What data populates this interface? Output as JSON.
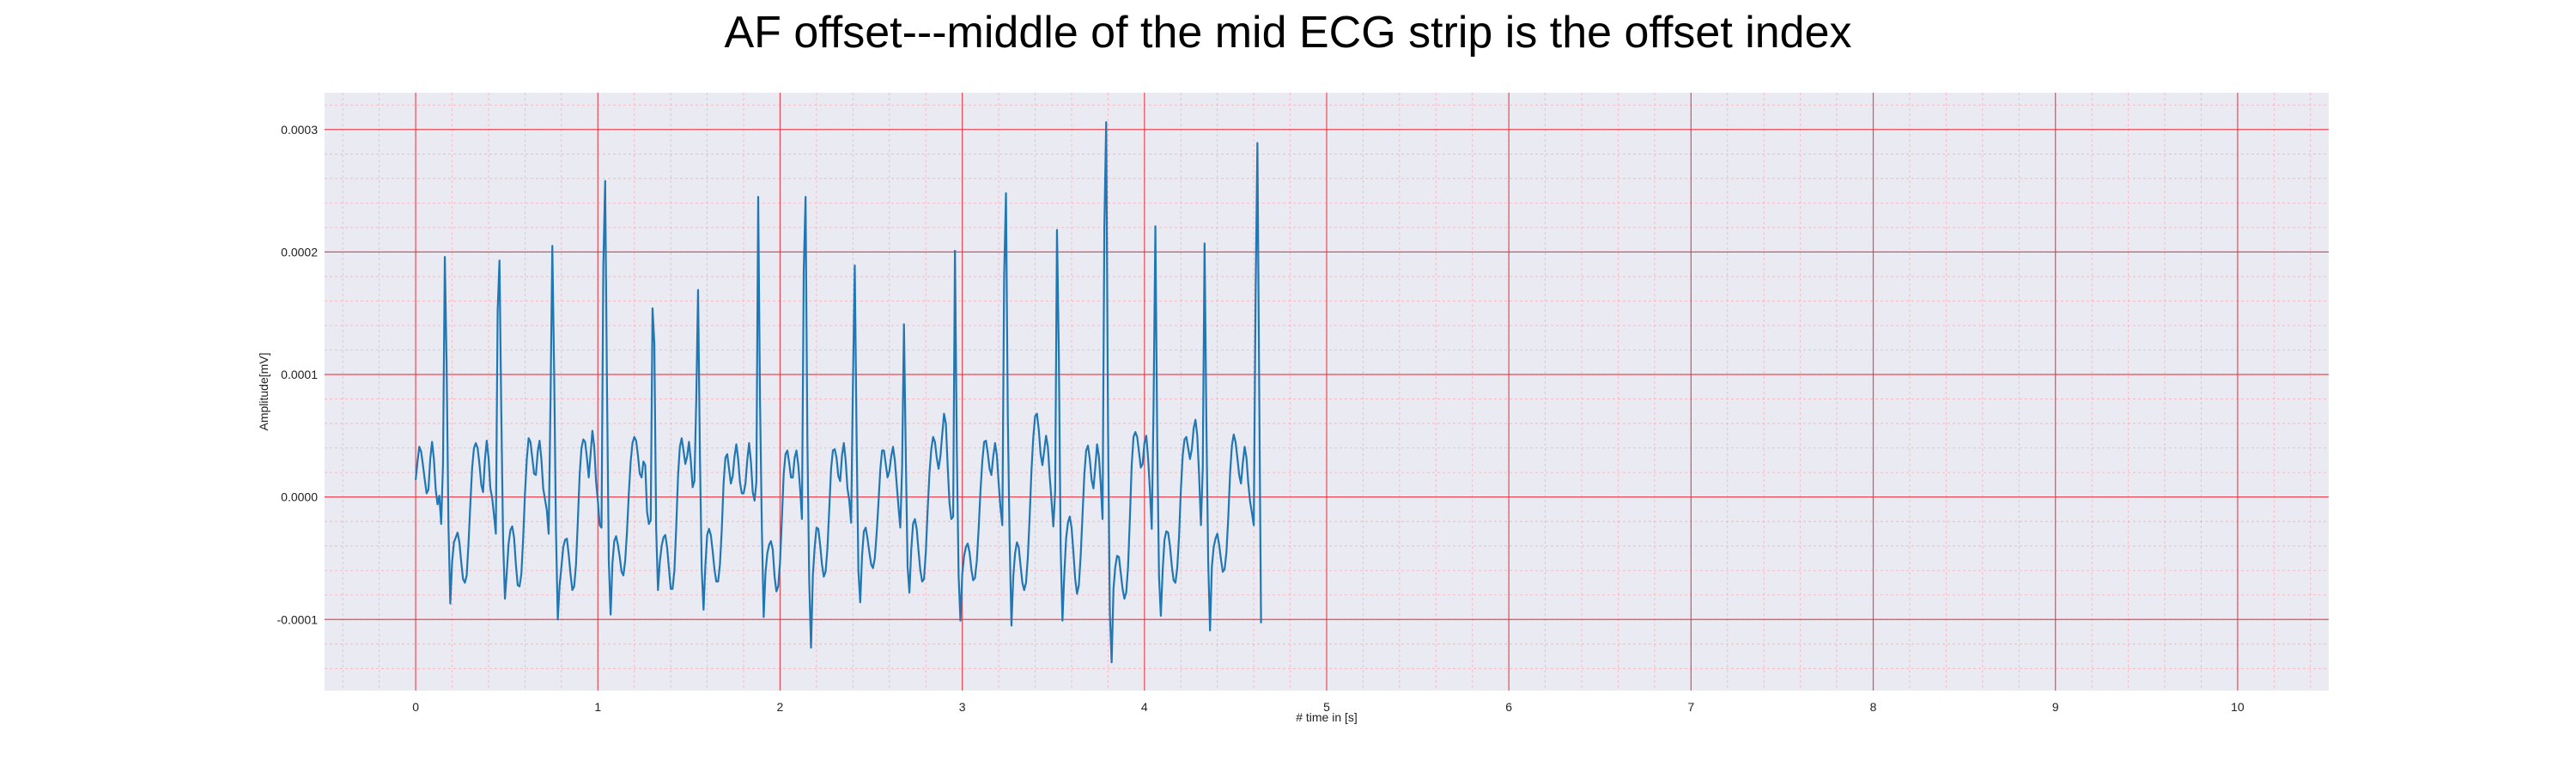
{
  "chart_data": {
    "type": "line",
    "title": "AF offset---middle of the mid ECG strip is the offset index",
    "xlabel": "# time in [s]",
    "ylabel": "Amplitude[mV]",
    "xlim": [
      -0.5,
      10.5
    ],
    "ylim": [
      -0.000158,
      0.00033
    ],
    "xticks": [
      0,
      1,
      2,
      3,
      4,
      5,
      6,
      7,
      8,
      9,
      10
    ],
    "xtick_labels": [
      "0",
      "1",
      "2",
      "3",
      "4",
      "5",
      "6",
      "7",
      "8",
      "9",
      "10"
    ],
    "yticks": [
      -0.0001,
      0.0,
      0.0001,
      0.0002,
      0.0003
    ],
    "ytick_labels": [
      "-0.0001",
      "0.0000",
      "0.0001",
      "0.0002",
      "0.0003"
    ],
    "grid": "major and minor",
    "sample_rate_hz": 100,
    "series": [
      {
        "color": "#1f77b4",
        "x_start": 0,
        "x_step": 0.01,
        "values": [
          1.4e-05,
          2.9e-05,
          4.1e-05,
          3.7e-05,
          2.6e-05,
          1.4e-05,
          3e-06,
          6e-06,
          3.1e-05,
          4.5e-05,
          3.1e-05,
          6e-06,
          -6e-06,
          1e-06,
          -2.2e-05,
          2.7e-05,
          0.000196,
          0.000106,
          -2.3e-05,
          -8.7e-05,
          -5.3e-05,
          -3.7e-05,
          -3.3e-05,
          -2.9e-05,
          -3.7e-05,
          -5.3e-05,
          -6.7e-05,
          -7e-05,
          -6.4e-05,
          -3.8e-05,
          -6e-06,
          2.4e-05,
          4e-05,
          4.4e-05,
          4e-05,
          2.7e-05,
          1e-05,
          4e-06,
          3e-05,
          4.6e-05,
          3.2e-05,
          7e-06,
          -1e-06,
          -1.5e-05,
          -3e-05,
          0.000152,
          0.000193,
          6.8e-05,
          -3.6e-05,
          -8.3e-05,
          -6.2e-05,
          -3.8e-05,
          -2.7e-05,
          -2.4e-05,
          -3.3e-05,
          -5.5e-05,
          -7.2e-05,
          -7.3e-05,
          -6.3e-05,
          -3.4e-05,
          3e-06,
          3.1e-05,
          4.8e-05,
          4.5e-05,
          3.2e-05,
          1.9e-05,
          1.8e-05,
          3.7e-05,
          4.6e-05,
          3.1e-05,
          7e-06,
          -2e-06,
          -1.1e-05,
          -3e-05,
          7.7e-05,
          0.000205,
          0.000103,
          -2.7e-05,
          -0.0001,
          -7.2e-05,
          -5.7e-05,
          -4.1e-05,
          -3.5e-05,
          -3.4e-05,
          -4.7e-05,
          -6.3e-05,
          -7.6e-05,
          -7.3e-05,
          -5.5e-05,
          -2e-05,
          1.8e-05,
          4e-05,
          4.7e-05,
          4.5e-05,
          3.2e-05,
          1.6e-05,
          3.5e-05,
          5.4e-05,
          4.1e-05,
          1.3e-05,
          -3e-06,
          -2.3e-05,
          -2.5e-05,
          0.000189,
          0.000258,
          9.1e-05,
          -5.2e-05,
          -9.6e-05,
          -5.4e-05,
          -3.6e-05,
          -3.2e-05,
          -3.9e-05,
          -4.9e-05,
          -6.1e-05,
          -6.4e-05,
          -5.2e-05,
          -2.8e-05,
          3e-06,
          2.9e-05,
          4.4e-05,
          4.9e-05,
          4.6e-05,
          3.4e-05,
          1.9e-05,
          1.6e-05,
          2.9e-05,
          2.6e-05,
          -1.2e-05,
          -2.2e-05,
          -1.9e-05,
          0.000154,
          0.000125,
          -2.6e-05,
          -7.6e-05,
          -5.3e-05,
          -4e-05,
          -3.3e-05,
          -3.1e-05,
          -4.1e-05,
          -5.8e-05,
          -7.5e-05,
          -7.5e-05,
          -6e-05,
          -2.5e-05,
          1.7e-05,
          4.1e-05,
          4.8e-05,
          3.8e-05,
          2.7e-05,
          3.3e-05,
          4.5e-05,
          3e-05,
          8e-06,
          1.3e-05,
          7.9e-05,
          0.000169,
          3.6e-05,
          -5.9e-05,
          -9.2e-05,
          -5.6e-05,
          -3.1e-05,
          -2.6e-05,
          -3.1e-05,
          -4.4e-05,
          -5.9e-05,
          -6.9e-05,
          -6.9e-05,
          -5.5e-05,
          -2.7e-05,
          1.1e-05,
          3.2e-05,
          3.5e-05,
          2.3e-05,
          1.1e-05,
          1.7e-05,
          3.3e-05,
          4.3e-05,
          3.1e-05,
          1.2e-05,
          3e-06,
          3e-06,
          1.1e-05,
          3e-05,
          4.4e-05,
          2.9e-05,
          4e-06,
          -3e-06,
          1.2e-05,
          0.000245,
          7.9e-05,
          -2.5e-05,
          -9.8e-05,
          -6.2e-05,
          -4.6e-05,
          -3.9e-05,
          -3.6e-05,
          -4.3e-05,
          -6.5e-05,
          -7.7e-05,
          -7.3e-05,
          -5.3e-05,
          -1.8e-05,
          1.9e-05,
          3.5e-05,
          3.8e-05,
          2.8e-05,
          1.6e-05,
          1.6e-05,
          3.2e-05,
          3.8e-05,
          2.6e-05,
          7e-06,
          -1.8e-05,
          0.000185,
          0.000245,
          4.6e-05,
          -6.8e-05,
          -0.000123,
          -6.4e-05,
          -4.1e-05,
          -2.5e-05,
          -2.6e-05,
          -3.9e-05,
          -5.5e-05,
          -6.5e-05,
          -6.1e-05,
          -4.2e-05,
          -1e-05,
          2.3e-05,
          3.8e-05,
          3.9e-05,
          3.2e-05,
          1.7e-05,
          1.3e-05,
          3.4e-05,
          4.4e-05,
          3e-05,
          7e-06,
          -3e-06,
          -2.1e-05,
          9.2e-05,
          0.000189,
          5e-05,
          -6e-05,
          -8.6e-05,
          -4.8e-05,
          -2.8e-05,
          -2.5e-05,
          -3.4e-05,
          -4.5e-05,
          -5.5e-05,
          -5.8e-05,
          -5e-05,
          -3e-05,
          -5e-06,
          2.2e-05,
          3.8e-05,
          3.8e-05,
          2.7e-05,
          1.6e-05,
          2.1e-05,
          3.3e-05,
          4.1e-05,
          3e-05,
          1.1e-05,
          -8e-06,
          -2.5e-05,
          2.5e-05,
          0.000141,
          3.5e-05,
          -5.7e-05,
          -7.8e-05,
          -4.3e-05,
          -2.2e-05,
          -1.8e-05,
          -2.6e-05,
          -4.4e-05,
          -6e-05,
          -6.9e-05,
          -6.7e-05,
          -4.5e-05,
          -1.1e-05,
          1.9e-05,
          3.9e-05,
          4.9e-05,
          4.5e-05,
          3.2e-05,
          2.3e-05,
          3.3e-05,
          5.1e-05,
          6.8e-05,
          6e-05,
          2.5e-05,
          -5e-06,
          -1.8e-05,
          -1.6e-05,
          0.000201,
          4.1e-05,
          -6.4e-05,
          -0.000101,
          -6.3e-05,
          -4.8e-05,
          -4.1e-05,
          -3.8e-05,
          -4.5e-05,
          -5.9e-05,
          -6.8e-05,
          -6.6e-05,
          -5.2e-05,
          -2.6e-05,
          5e-06,
          2.9e-05,
          4.5e-05,
          4.6e-05,
          3.6e-05,
          2.3e-05,
          1.8e-05,
          3.3e-05,
          4.4e-05,
          3.4e-05,
          1.1e-05,
          -9e-06,
          -2.3e-05,
          0.000181,
          0.000248,
          6.6e-05,
          -3.5e-05,
          -0.000105,
          -6.5e-05,
          -4.6e-05,
          -3.7e-05,
          -4.1e-05,
          -5.6e-05,
          -7e-05,
          -7.6e-05,
          -7e-05,
          -4.9e-05,
          -1.6e-05,
          2.2e-05,
          4.9e-05,
          6.6e-05,
          6.8e-05,
          5.5e-05,
          3.5e-05,
          2.6e-05,
          3.8e-05,
          5e-05,
          4.1e-05,
          1.7e-05,
          -3e-06,
          -2.4e-05,
          5e-06,
          0.000218,
          0.000118,
          -4.1e-05,
          -0.000101,
          -6.3e-05,
          -3.4e-05,
          -2.1e-05,
          -1.6e-05,
          -2.5e-05,
          -4.5e-05,
          -6.7e-05,
          -7.9e-05,
          -7.2e-05,
          -4.8e-05,
          -1.5e-05,
          1.8e-05,
          3.8e-05,
          4.2e-05,
          3.1e-05,
          1.4e-05,
          7e-06,
          2.4e-05,
          4.3e-05,
          3.3e-05,
          1.1e-05,
          -1.8e-05,
          0.000221,
          0.000306,
          6e-05,
          -9.4e-05,
          -0.000135,
          -7.5e-05,
          -5.7e-05,
          -4.8e-05,
          -4.9e-05,
          -6.2e-05,
          -7.5e-05,
          -8.3e-05,
          -7.8e-05,
          -5.7e-05,
          -1.8e-05,
          2.6e-05,
          4.9e-05,
          5.3e-05,
          4.9e-05,
          3.7e-05,
          2.4e-05,
          2.7e-05,
          4.4e-05,
          5e-05,
          3.2e-05,
          6e-06,
          -2.6e-05,
          7.3e-05,
          0.000221,
          4.9e-05,
          -6.5e-05,
          -9.7e-05,
          -6e-05,
          -3.5e-05,
          -2.8e-05,
          -2.9e-05,
          -4e-05,
          -5.6e-05,
          -6.8e-05,
          -7e-05,
          -5.8e-05,
          -3.2e-05,
          6e-06,
          3.4e-05,
          4.7e-05,
          4.9e-05,
          4e-05,
          3.1e-05,
          3.9e-05,
          5.6e-05,
          6.3e-05,
          5e-05,
          1.8e-05,
          -2.3e-05,
          2.3e-05,
          0.000207,
          5.9e-05,
          -5.3e-05,
          -0.000109,
          -5.7e-05,
          -4.1e-05,
          -3.4e-05,
          -3e-05,
          -3.9e-05,
          -5.1e-05,
          -6.1e-05,
          -5.9e-05,
          -4.5e-05,
          -1.7e-05,
          1.9e-05,
          4.2e-05,
          5.1e-05,
          4.5e-05,
          3.2e-05,
          1.8e-05,
          1.1e-05,
          2.8e-05,
          4.1e-05,
          3.2e-05,
          1.1e-05,
          -4e-06,
          -1.3e-05,
          -2.3e-05,
          0.000163,
          0.000289,
          8.5e-05,
          -0.000103
        ]
      }
    ]
  }
}
